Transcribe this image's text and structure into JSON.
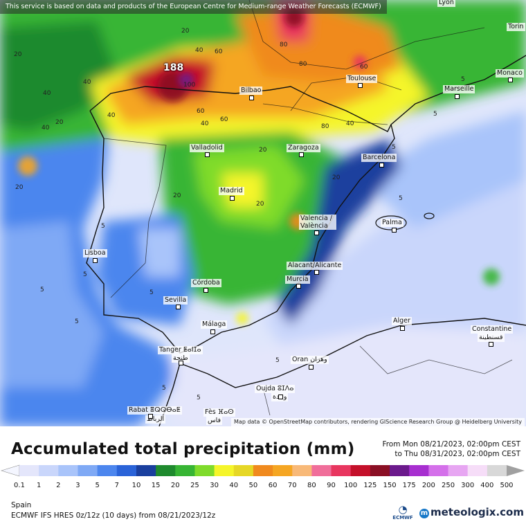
{
  "notice": "This service is based on data and products of the European Centre for Medium-range Weather Forecasts (ECMWF)",
  "attribution": "Map data © OpenStreetMap contributors, rendering GIScience Research Group @ Heidelberg University",
  "max_value": "188",
  "cities": {
    "lyon": "Lyon",
    "torino": "Torin",
    "monaco": "Monaco",
    "marseille": "Marseille",
    "toulouse": "Toulouse",
    "bilbao": "Bilbao",
    "valladolid": "Valladolid",
    "zaragoza": "Zaragoza",
    "barcelona": "Barcelona",
    "madrid": "Madrid",
    "valencia": "Valencia / València",
    "palma": "Palma",
    "lisboa": "Lisboa",
    "alacant": "Alacant/Alicante",
    "murcia": "Murcia",
    "cordoba": "Córdoba",
    "sevilla": "Sevilla",
    "malaga": "Málaga",
    "alger": "Alger",
    "constantine": "Constantine",
    "constantine_ar": "قسنطينة",
    "tanger": "Tanger ⵟⴰⵏⵊⴰ",
    "tanger_ar": "طنجة",
    "oran": "Oran وهران",
    "oujda": "Oujda ⵓⵊⴷⴰ",
    "oujda_ar": "وجدة",
    "rabat": "Rabat ⴻⵕⵕⴱⴰⵟ",
    "rabat_ar": "الرباط",
    "fes": "Fès ⴼⴰⵙ",
    "fes_ar": "فاس"
  },
  "contour_values": [
    "20",
    "40",
    "60",
    "80",
    "40",
    "20",
    "100",
    "40",
    "60",
    "80",
    "80",
    "60",
    "40",
    "20",
    "40",
    "60",
    "20",
    "40",
    "20",
    "20",
    "5",
    "5",
    "5",
    "5",
    "5",
    "5",
    "5",
    "5",
    "20",
    "40",
    "20",
    "5",
    "5",
    "5",
    "5"
  ],
  "title": "Accumulated total precipitation (mm)",
  "period": {
    "from": "From Mon 08/21/2023, 02:00pm CEST",
    "to": "to Thu 08/31/2023, 02:00pm CEST"
  },
  "legend": {
    "ticks": [
      "0.1",
      "1",
      "2",
      "3",
      "5",
      "7",
      "10",
      "15",
      "20",
      "25",
      "30",
      "40",
      "50",
      "60",
      "70",
      "80",
      "90",
      "100",
      "125",
      "150",
      "175",
      "200",
      "250",
      "300",
      "400",
      "500"
    ],
    "colors": [
      "#e4e6fb",
      "#c9d6fb",
      "#a9c4fa",
      "#7fa9f5",
      "#4c86ee",
      "#2a63d8",
      "#1a3f9e",
      "#1f8a2e",
      "#37b534",
      "#7fdb2b",
      "#f5f52a",
      "#e6d726",
      "#f08a1e",
      "#f5a623",
      "#f8b978",
      "#f06e9a",
      "#e8365f",
      "#c4102a",
      "#8a0f24",
      "#6b1a8c",
      "#a72fd0",
      "#d470ea",
      "#e7a6f2",
      "#f6ddf8",
      "#d8d8d8"
    ]
  },
  "region": "Spain",
  "model_info": "ECMWF IFS HRES 0z/12z (10 days) from  08/21/2023/12z",
  "logos": {
    "ecmwf": "ECMWF",
    "meteologix": "meteologix.com"
  }
}
